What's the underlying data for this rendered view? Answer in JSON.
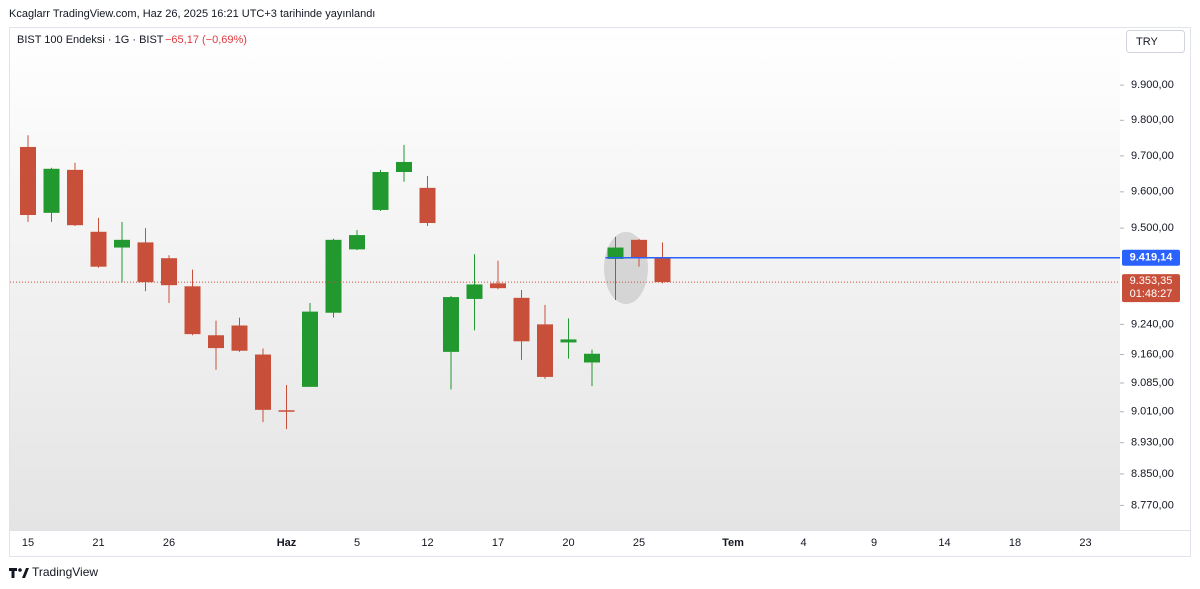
{
  "chart_data": {
    "type": "candlestick",
    "attribution": "Kcaglarr TradingView.com, Haz 26, 2025 16:21 UTC+3 tarihinde yayınlandı",
    "symbol": "BIST 100 Endeksi · 1G · BIST",
    "change": "−65,17 (−0,69%)",
    "currency": "TRY",
    "brand": "TradingView",
    "categories": [
      "15",
      null,
      null,
      "21",
      null,
      null,
      "26",
      null,
      null,
      null,
      null,
      "Haz",
      null,
      null,
      "5",
      null,
      null,
      "12",
      null,
      null,
      "17",
      null,
      null,
      "20",
      null,
      null,
      "25",
      null,
      null,
      null,
      "Tem",
      null,
      null,
      "4",
      null,
      null,
      "9",
      null,
      null,
      "14",
      null,
      null,
      "18",
      null,
      null,
      "23"
    ],
    "open": [
      9725,
      9542,
      9661,
      9490,
      9447,
      9461,
      9418,
      9342,
      9211,
      9237,
      9160,
      9014,
      9075,
      9271,
      9442,
      9550,
      9655,
      9611,
      9167,
      9308,
      9350,
      9311,
      9240,
      9192,
      9139,
      9416,
      9468,
      9419,
      null,
      null,
      null,
      null,
      null,
      null,
      null,
      null,
      null,
      null,
      null,
      null,
      null,
      null,
      null,
      null,
      null,
      null
    ],
    "high": [
      9758,
      9667,
      9681,
      9528,
      9517,
      9500,
      9426,
      9387,
      9250,
      9258,
      9176,
      9080,
      9297,
      9471,
      9495,
      9661,
      9731,
      9644,
      9316,
      9429,
      9411,
      9332,
      9292,
      9256,
      9173,
      9476,
      9471,
      9461,
      null,
      null,
      null,
      null,
      null,
      null,
      null,
      null,
      null,
      null,
      null,
      null,
      null,
      null,
      null,
      null,
      null,
      null
    ],
    "low": [
      9517,
      9517,
      9506,
      9392,
      9353,
      9329,
      9297,
      9211,
      9120,
      9167,
      8983,
      8965,
      9075,
      9258,
      9440,
      9547,
      9628,
      9506,
      9068,
      9224,
      9334,
      9146,
      9096,
      9149,
      9077,
      9305,
      9395,
      9350,
      null,
      null,
      null,
      null,
      null,
      null,
      null,
      null,
      null,
      null,
      null,
      null,
      null,
      null,
      null,
      null,
      null,
      null
    ],
    "close": [
      9536,
      9664,
      9508,
      9395,
      9468,
      9353,
      9345,
      9214,
      9177,
      9170,
      9015,
      9010,
      9274,
      9468,
      9481,
      9655,
      9683,
      9514,
      9313,
      9347,
      9337,
      9195,
      9101,
      9200,
      9162,
      9447,
      9418.52,
      9353.35,
      null,
      null,
      null,
      null,
      null,
      null,
      null,
      null,
      null,
      null,
      null,
      null,
      null,
      null,
      null,
      null,
      null,
      null
    ],
    "up_color": "#22992f",
    "down_color": "#c8503a",
    "log": true,
    "ylim": [
      8708,
      9995
    ],
    "yticks": [
      {
        "value": 9900,
        "label": "9.900,00"
      },
      {
        "value": 9800,
        "label": "9.800,00"
      },
      {
        "value": 9700,
        "label": "9.700,00"
      },
      {
        "value": 9600,
        "label": "9.600,00"
      },
      {
        "value": 9500,
        "label": "9.500,00"
      },
      {
        "value": 9240,
        "label": "9.240,00"
      },
      {
        "value": 9160,
        "label": "9.160,00"
      },
      {
        "value": 9085,
        "label": "9.085,00"
      },
      {
        "value": 9010,
        "label": "9.010,00"
      },
      {
        "value": 8930,
        "label": "8.930,00"
      },
      {
        "value": 8850,
        "label": "8.850,00"
      },
      {
        "value": 8770,
        "label": "8.770,00"
      }
    ],
    "hline": {
      "value": 9419.14,
      "label": "9.419,14",
      "color": "#2962ff"
    },
    "last_price": {
      "value": 9353.35,
      "label": "9.353,35",
      "countdown": "01:48:27",
      "color": "#c8503a"
    }
  }
}
